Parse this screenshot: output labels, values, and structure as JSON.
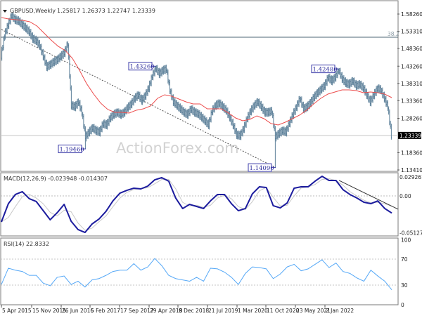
{
  "header": {
    "symbol": "GBPUSD,Weekly",
    "ohlc": "1.25817 1.26373 1.22747 1.23339"
  },
  "watermark": "ActionForex.com",
  "colors": {
    "bars": "#5b7f98",
    "ma": "#ec4b4b",
    "macd": "#1c1c9e",
    "signal": "#c9c9c9",
    "rsi": "#55a8f7",
    "fib": "#4d6674",
    "label_border": "#3a3aa8"
  },
  "chart_data": [
    {
      "type": "ohlc",
      "title": "GBPUSD,Weekly",
      "ylim": [
        1.1341,
        1.5826
      ],
      "y_ticks": [
        "1.58260",
        "1.53310",
        "1.48360",
        "1.43260",
        "1.38310",
        "1.33360",
        "1.28260",
        "1.18360",
        "1.13410"
      ],
      "current_price": "1.23339",
      "x_ticks": [
        "5 Apr 2015",
        "15 Nov 2015",
        "26 Jun 2016",
        "5 Feb 2017",
        "17 Sep 2017",
        "29 Apr 2018",
        "9 Dec 2018",
        "21 Jul 2019",
        "1 Mar 2020",
        "11 Oct 2020",
        "23 May 2021",
        "2 Jan 2022"
      ],
      "closes": [
        1.4614,
        1.522,
        1.5523,
        1.5786,
        1.5664,
        1.5624,
        1.5523,
        1.5422,
        1.5321,
        1.5119,
        1.5058,
        1.4917,
        1.4614,
        1.4311,
        1.4372,
        1.4452,
        1.4513,
        1.4614,
        1.4715,
        1.4978,
        1.32,
        1.316,
        1.3301,
        1.2998,
        1.2291,
        1.2432,
        1.2554,
        1.2473,
        1.2432,
        1.2675,
        1.2634,
        1.2836,
        1.2937,
        1.2998,
        1.2937,
        1.2998,
        1.3139,
        1.324,
        1.3402,
        1.3503,
        1.3341,
        1.3483,
        1.3705,
        1.4048,
        1.4271,
        1.4109,
        1.421,
        1.425,
        1.3644,
        1.3301,
        1.32,
        1.3099,
        1.2998,
        1.2937,
        1.3099,
        1.2998,
        1.2958,
        1.2857,
        1.2756,
        1.2634,
        1.3038,
        1.32,
        1.3261,
        1.316,
        1.3059,
        1.2857,
        1.2634,
        1.2352,
        1.2331,
        1.2533,
        1.2836,
        1.3038,
        1.32,
        1.3301,
        1.316,
        1.2998,
        1.2998,
        1.3038,
        1.2291,
        1.2392,
        1.2473,
        1.2432,
        1.2695,
        1.2937,
        1.316,
        1.3402,
        1.3099,
        1.316,
        1.3281,
        1.3442,
        1.3564,
        1.3665,
        1.3766,
        1.4008,
        1.3907,
        1.4008,
        1.421,
        1.3968,
        1.3846,
        1.3806,
        1.3907,
        1.3766,
        1.3806,
        1.3705,
        1.3503,
        1.3301,
        1.3503,
        1.3685,
        1.3644,
        1.3402,
        1.316,
        1.2334
      ],
      "moving_average": [
        1.5725,
        1.5685,
        1.5664,
        1.5644,
        1.5604,
        1.5483,
        1.5281,
        1.5079,
        1.4897,
        1.4776,
        1.4553,
        1.421,
        1.3826,
        1.3523,
        1.3261,
        1.3079,
        1.2998,
        1.2998,
        1.2978,
        1.3059,
        1.3099,
        1.318,
        1.3402,
        1.3503,
        1.3463,
        1.3382,
        1.3301,
        1.324,
        1.324,
        1.3099,
        1.3099,
        1.3099,
        1.2978,
        1.2836,
        1.2756,
        1.2796,
        1.2897,
        1.2816,
        1.2675,
        1.2634,
        1.2715,
        1.2816,
        1.2917,
        1.3059,
        1.324,
        1.3402,
        1.3523,
        1.3584,
        1.3644,
        1.3644,
        1.3624,
        1.3564,
        1.3584,
        1.3564,
        1.3523,
        1.3422
      ],
      "annotations": [
        {
          "text": "1.19460",
          "price": 1.1946,
          "bar": 24,
          "type": "low"
        },
        {
          "text": "1.43260",
          "price": 1.4326,
          "bar": 44,
          "type": "high"
        },
        {
          "text": "1.14090",
          "price": 1.1409,
          "bar": 78,
          "type": "low"
        },
        {
          "text": "1.42480",
          "price": 1.4248,
          "bar": 96,
          "type": "high"
        }
      ],
      "fib_level": {
        "label": "38.2",
        "price": 1.516
      },
      "trendline": {
        "from": {
          "bar": 0,
          "price": 1.5382
        },
        "to": {
          "bar": 78,
          "price": 1.1409
        }
      }
    },
    {
      "type": "line",
      "title": "MACD(12,26,9) -0.023948 -0.014307",
      "ylim": [
        -0.051279,
        0.029261
      ],
      "y_ticks": [
        "0.029261",
        "0.00",
        "-0.051279"
      ],
      "series": [
        {
          "name": "MACD",
          "values": [
            -0.0363,
            -0.0108,
            0.002,
            0.0059,
            -0.0039,
            -0.0078,
            -0.0206,
            -0.0333,
            -0.0235,
            -0.0118,
            -0.0353,
            -0.047,
            -0.051,
            -0.0392,
            -0.0323,
            -0.0216,
            -0.0069,
            0.0039,
            0.0078,
            0.0108,
            0.0098,
            0.0137,
            0.0225,
            0.0255,
            0.0206,
            -0.0029,
            -0.0176,
            -0.0118,
            -0.0147,
            -0.0176,
            -0.0069,
            0.002,
            0.002,
            -0.0108,
            -0.0206,
            -0.0176,
            0.0029,
            0.0127,
            0.0118,
            -0.0137,
            -0.0167,
            -0.0098,
            0.0108,
            0.0127,
            0.0127,
            0.0206,
            0.0274,
            0.0216,
            0.0216,
            0.0088,
            0.002,
            -0.0029,
            -0.0088,
            -0.0108,
            -0.0069,
            -0.0176,
            -0.0239
          ]
        },
        {
          "name": "Signal",
          "values": [
            -0.0363,
            -0.03,
            -0.015,
            -0.001,
            0.002,
            -0.003,
            -0.011,
            -0.023,
            -0.028,
            -0.02,
            -0.022,
            -0.038,
            -0.048,
            -0.045,
            -0.036,
            -0.028,
            -0.015,
            -0.003,
            0.005,
            0.009,
            0.01,
            0.0115,
            0.017,
            0.023,
            0.023,
            0.01,
            -0.009,
            -0.014,
            -0.013,
            -0.016,
            -0.013,
            -0.003,
            0.001,
            -0.004,
            -0.015,
            -0.019,
            -0.008,
            0.007,
            0.012,
            -0.002,
            -0.014,
            -0.013,
            0.0,
            0.011,
            0.0125,
            0.016,
            0.023,
            0.024,
            0.0215,
            0.015,
            0.006,
            0.0,
            -0.006,
            -0.0095,
            -0.009,
            -0.011,
            -0.0143
          ]
        }
      ],
      "trendline": {
        "from": {
          "bar": 96,
          "value": 0.0216
        },
        "to": {
          "bar": 111,
          "value": -0.0186
        }
      }
    },
    {
      "type": "line",
      "title": "RSI(14) 22.8332",
      "ylim": [
        0,
        100
      ],
      "y_ticks": [
        "100",
        "70",
        "30",
        "0"
      ],
      "levels": [
        70,
        30
      ],
      "series": [
        {
          "name": "RSI",
          "values": [
            31,
            56,
            53,
            51,
            45,
            45,
            33,
            29,
            42,
            44,
            31,
            36,
            27,
            38,
            40,
            45,
            51,
            53,
            53,
            63,
            53,
            58,
            71,
            60,
            45,
            40,
            38,
            36,
            42,
            36,
            56,
            55,
            50,
            42,
            31,
            48,
            58,
            57,
            55,
            40,
            47,
            58,
            62,
            52,
            55,
            62,
            69,
            57,
            64,
            51,
            48,
            41,
            36,
            53,
            44,
            36,
            22.8
          ]
        }
      ]
    }
  ]
}
